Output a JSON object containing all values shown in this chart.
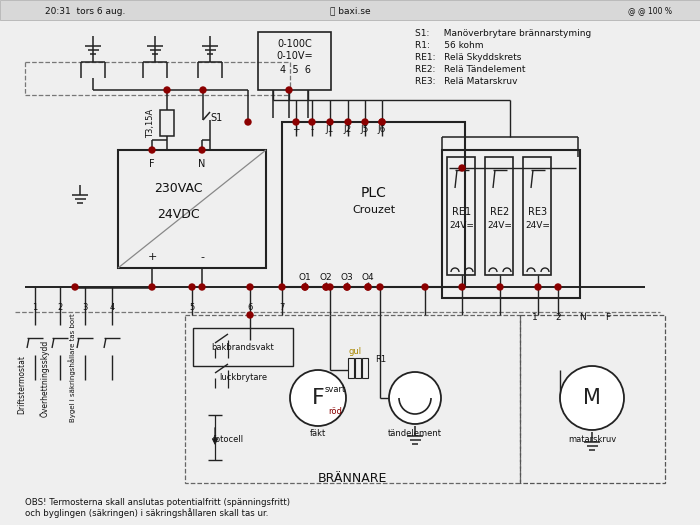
{
  "bg_color": "#efefef",
  "line_color": "#222222",
  "dot_color": "#8b0000",
  "legend_lines": [
    "S1:     Manöverbrytare brännarstyming",
    "R1:     56 kohm",
    "RE1:   Relä Skyddskrets",
    "RE2:   Relä Tändelement",
    "RE3:   Relä Matarskruv"
  ],
  "status_bar_text": "20:31  tors 6 aug.",
  "sensor_label": [
    "0-100C",
    "0-10V=",
    "4  5  6"
  ],
  "psu_text": [
    "230VAC",
    "24VDC"
  ],
  "psu_terminals": [
    "F",
    "N",
    "+",
    "-"
  ],
  "plc_text": [
    "PLC",
    "Crouzet"
  ],
  "plc_inputs": [
    "+",
    "-",
    "J1",
    "J2",
    "J5",
    "J6"
  ],
  "plc_outputs": [
    "O1",
    "O2",
    "O3",
    "O4"
  ],
  "relay_names": [
    "RE1",
    "RE2",
    "RE3"
  ],
  "relay_voltage": [
    "24V=",
    "24V=",
    "24V="
  ],
  "fuse_label": "T3,15A",
  "switch_label": "S1",
  "burner_label": "BRÄNNARE",
  "color_labels": [
    "gul",
    "svart",
    "röd"
  ],
  "R1_label": "R1",
  "component_labels_rotated": [
    "Driftstermostat",
    "Överhettningsskydd",
    "Bygel i säkringshållare tas bort"
  ],
  "bottom_components": [
    "bakbrandsvakt",
    "luckbrytare",
    "fotocell",
    "fäkt",
    "tändelement",
    "matarskruv"
  ],
  "note": "OBS! Termosterna skall anslutas potentialfritt (spänningsfritt)\noch byglingen (säkringen) i säkringshållaren skall tas ur.",
  "terminal_numbers": [
    "1",
    "2",
    "3",
    "4",
    "5",
    "6",
    "7"
  ],
  "right_terminals": [
    "1",
    "2",
    "N",
    "F"
  ]
}
